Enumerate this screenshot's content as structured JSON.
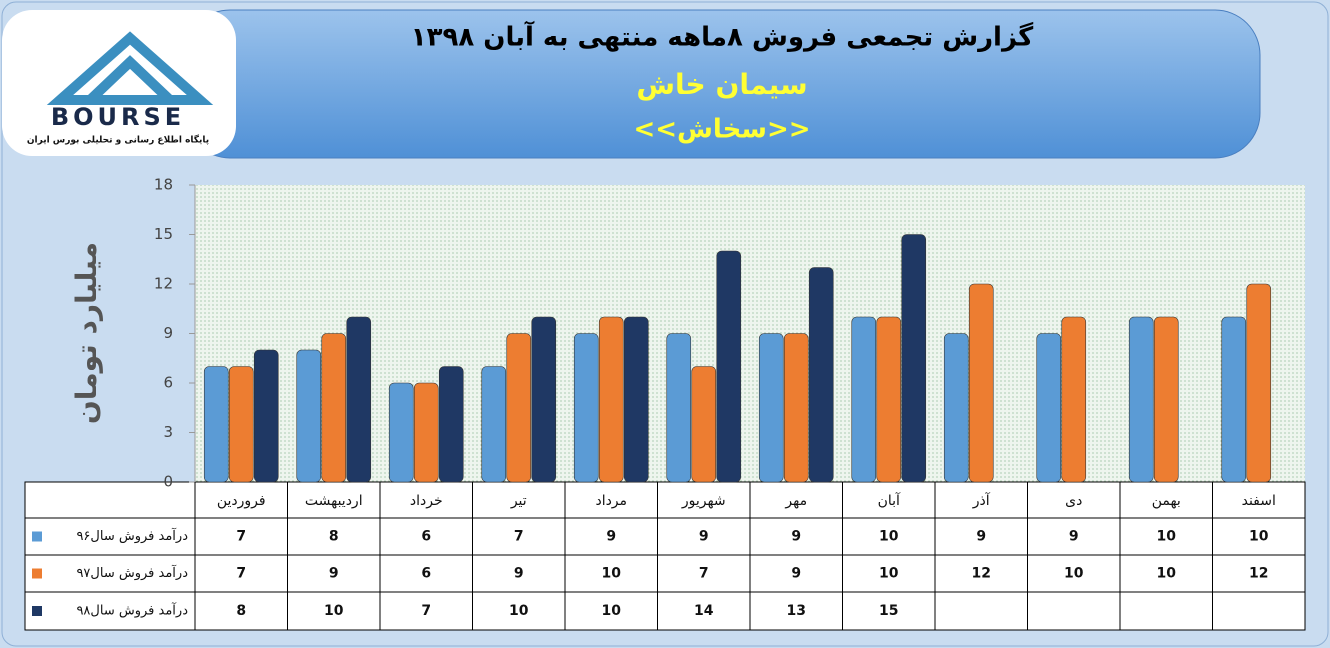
{
  "logo": {
    "name": "BOURSE",
    "tagline": "پایگاه اطلاع رسانی و تحلیلی بورس ایران"
  },
  "chart_data": {
    "type": "bar",
    "title": "گزارش تجمعی فروش  ۸ماهه منتهی به آبان ۱۳۹۸",
    "subtitle": "سیمان خاش",
    "symbol": "<<سخاش>>",
    "y_label": "میلیارد تومان",
    "categories": [
      "فروردین",
      "اردیبهشت",
      "خرداد",
      "تیر",
      "مرداد",
      "شهریور",
      "مهر",
      "آبان",
      "آذر",
      "دی",
      "بهمن",
      "اسفند"
    ],
    "series": [
      {
        "name": "درآمد فروش سال۹۶",
        "color": "#5b9bd5",
        "values": [
          7,
          8,
          6,
          7,
          9,
          9,
          9,
          10,
          9,
          9,
          10,
          10
        ]
      },
      {
        "name": "درآمد فروش سال۹۷",
        "color": "#ed7d31",
        "values": [
          7,
          9,
          6,
          9,
          10,
          7,
          9,
          10,
          12,
          10,
          10,
          12
        ]
      },
      {
        "name": "درآمد فروش سال۹۸",
        "color": "#1f3864",
        "values": [
          8,
          10,
          7,
          10,
          10,
          14,
          13,
          15,
          null,
          null,
          null,
          null
        ]
      }
    ],
    "ylim": [
      0,
      18
    ],
    "yticks": [
      0,
      3,
      6,
      9,
      12,
      15,
      18
    ]
  }
}
